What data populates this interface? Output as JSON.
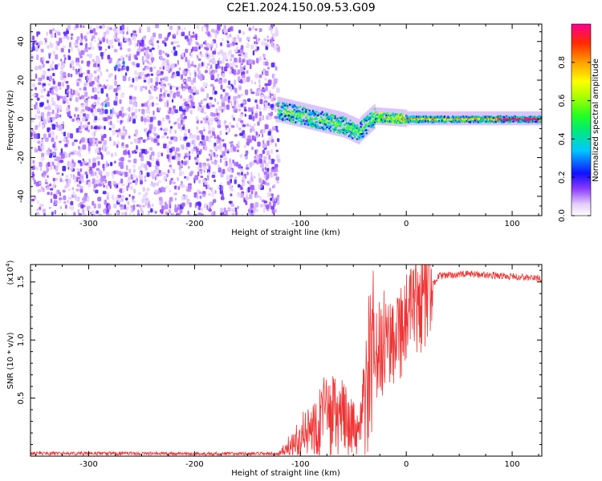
{
  "title": "C2E1.2024.150.09.53.G09",
  "chart_data": [
    {
      "type": "heatmap",
      "xlabel": "Height of straight line (km)",
      "ylabel": "Frequency (Hz)",
      "xlim": [
        -355,
        128
      ],
      "ylim": [
        -50,
        49
      ],
      "xticks": [
        -300,
        -200,
        -100,
        0,
        100
      ],
      "yticks": [
        -40,
        -20,
        0,
        20,
        40
      ],
      "colorbar": {
        "label": "Normalized spectral amplitude",
        "ticks": [
          "0.0",
          "0.2",
          "0.4",
          "0.6",
          "0.8"
        ],
        "range": [
          0,
          1
        ]
      },
      "regions": [
        {
          "name": "noise",
          "x": [
            -355,
            -122
          ],
          "y": [
            -50,
            49
          ],
          "amplitude": [
            0.0,
            0.2
          ]
        },
        {
          "name": "signal-track",
          "x": [
            -122,
            128
          ],
          "center_freq": 0,
          "amplitude": [
            0.3,
            1.0
          ]
        }
      ]
    },
    {
      "type": "line",
      "xlabel": "Height of straight line (km)",
      "ylabel": "SNR (10 * v/v)",
      "multiplier": "(x10",
      "multiplier_exp": "4",
      "multiplier_close": ")",
      "xlim": [
        -355,
        128
      ],
      "ylim": [
        0,
        16500
      ],
      "xticks": [
        -300,
        -200,
        -100,
        0,
        100
      ],
      "yticks": [
        0.5,
        1.0,
        1.5
      ],
      "color": "#ee3333",
      "series_profile": [
        {
          "x": -355,
          "y": 250
        },
        {
          "x": -120,
          "y": 200
        },
        {
          "x": -95,
          "y": 2000
        },
        {
          "x": -75,
          "y": 3500
        },
        {
          "x": -55,
          "y": 3000
        },
        {
          "x": -45,
          "y": 1500
        },
        {
          "x": -35,
          "y": 7000
        },
        {
          "x": -20,
          "y": 10000
        },
        {
          "x": 0,
          "y": 11500
        },
        {
          "x": 20,
          "y": 14000
        },
        {
          "x": 30,
          "y": 15500
        },
        {
          "x": 60,
          "y": 15700
        },
        {
          "x": 128,
          "y": 15300
        }
      ]
    }
  ]
}
